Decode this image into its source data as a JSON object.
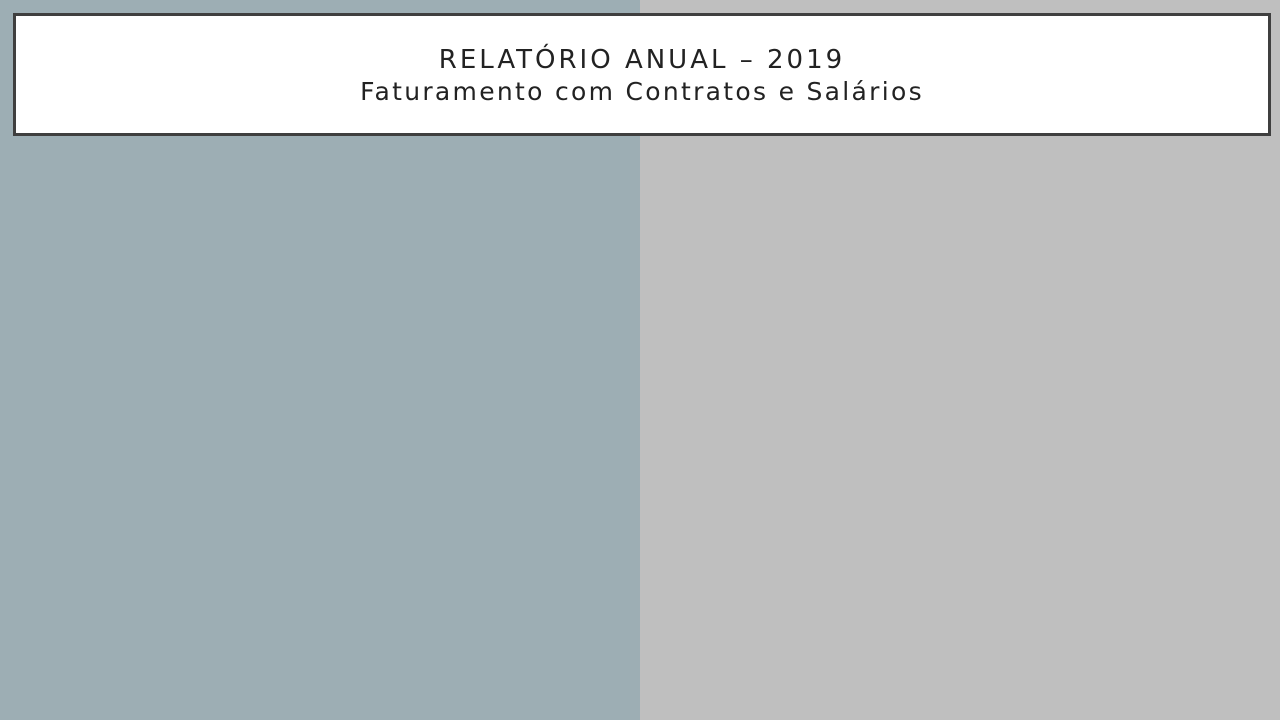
{
  "slide": {
    "title": "RELATÓRIO ANUAL – 2019",
    "subtitle": "Faturamento com Contratos e Salários"
  },
  "colors": {
    "left_panel": "#9daeb4",
    "right_panel": "#bfbfbf",
    "title_box_background": "#ffffff",
    "title_box_border": "#3f3f3f",
    "text": "#222222"
  }
}
